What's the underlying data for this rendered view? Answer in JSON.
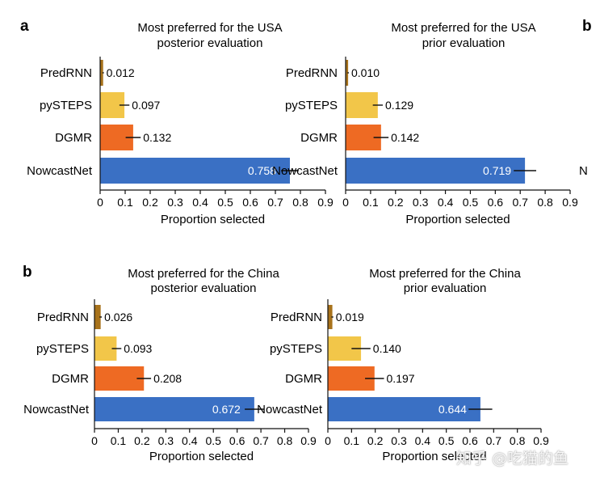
{
  "panel_letters": {
    "a": "a",
    "b": "b",
    "edge_letter": "b",
    "edge_label": "N"
  },
  "colors": {
    "PredRNN": "#a8731c",
    "pySTEPS": "#f2c649",
    "DGMR": "#ee6a23",
    "NowcastNet": "#3a70c4"
  },
  "watermark": "知乎 @吃猫的鱼",
  "chart_data": [
    {
      "type": "bar",
      "orientation": "horizontal",
      "title_lines": [
        "Most preferred for the USA",
        "posterior evaluation"
      ],
      "categories": [
        "PredRNN",
        "pySTEPS",
        "DGMR",
        "NowcastNet"
      ],
      "values": [
        0.012,
        0.097,
        0.132,
        0.758
      ],
      "value_labels": [
        "0.012",
        "0.097",
        "0.132",
        "0.758"
      ],
      "errors": [
        0.003,
        0.02,
        0.03,
        0.035
      ],
      "xlabel": "Proportion selected",
      "xlim": [
        0,
        0.9
      ],
      "xticks": [
        "0",
        "0.1",
        "0.2",
        "0.3",
        "0.4",
        "0.5",
        "0.6",
        "0.7",
        "0.8",
        "0.9"
      ]
    },
    {
      "type": "bar",
      "orientation": "horizontal",
      "title_lines": [
        "Most preferred for the USA",
        "prior evaluation"
      ],
      "categories": [
        "PredRNN",
        "pySTEPS",
        "DGMR",
        "NowcastNet"
      ],
      "values": [
        0.01,
        0.129,
        0.142,
        0.719
      ],
      "value_labels": [
        "0.010",
        "0.129",
        "0.142",
        "0.719"
      ],
      "errors": [
        0.003,
        0.02,
        0.03,
        0.045
      ],
      "xlabel": "Proportion selected",
      "xlim": [
        0,
        0.9
      ],
      "xticks": [
        "0",
        "0.1",
        "0.2",
        "0.3",
        "0.4",
        "0.5",
        "0.6",
        "0.7",
        "0.8",
        "0.9"
      ]
    },
    {
      "type": "bar",
      "orientation": "horizontal",
      "title_lines": [
        "Most preferred for the China",
        "posterior evaluation"
      ],
      "categories": [
        "PredRNN",
        "pySTEPS",
        "DGMR",
        "NowcastNet"
      ],
      "display_categories": [
        "PredRNN",
        "pySTEPS",
        "DGMR",
        "NowcastNet"
      ],
      "values": [
        0.026,
        0.093,
        0.208,
        0.672
      ],
      "value_labels": [
        "0.026",
        "0.093",
        "0.208",
        "0.672"
      ],
      "errors": [
        0.005,
        0.02,
        0.03,
        0.04
      ],
      "xlabel": "Proportion selected",
      "xlim": [
        0,
        0.9
      ],
      "xticks": [
        "0",
        "0.1",
        "0.2",
        "0.3",
        "0.4",
        "0.5",
        "0.6",
        "0.7",
        "0.8",
        "0.9"
      ]
    },
    {
      "type": "bar",
      "orientation": "horizontal",
      "title_lines": [
        "Most preferred for the China",
        "prior evaluation"
      ],
      "categories": [
        "PredRNN",
        "pySTEPS",
        "DGMR",
        "NowcastNet"
      ],
      "values": [
        0.019,
        0.14,
        0.197,
        0.644
      ],
      "value_labels": [
        "0.019",
        "0.140",
        "0.197",
        "0.644"
      ],
      "errors": [
        0.004,
        0.04,
        0.04,
        0.05
      ],
      "xlabel": "Proportion selected",
      "xlim": [
        0,
        0.9
      ],
      "xticks": [
        "0",
        "0.1",
        "0.2",
        "0.3",
        "0.4",
        "0.5",
        "0.6",
        "0.7",
        "0.8",
        "0.9"
      ]
    }
  ]
}
